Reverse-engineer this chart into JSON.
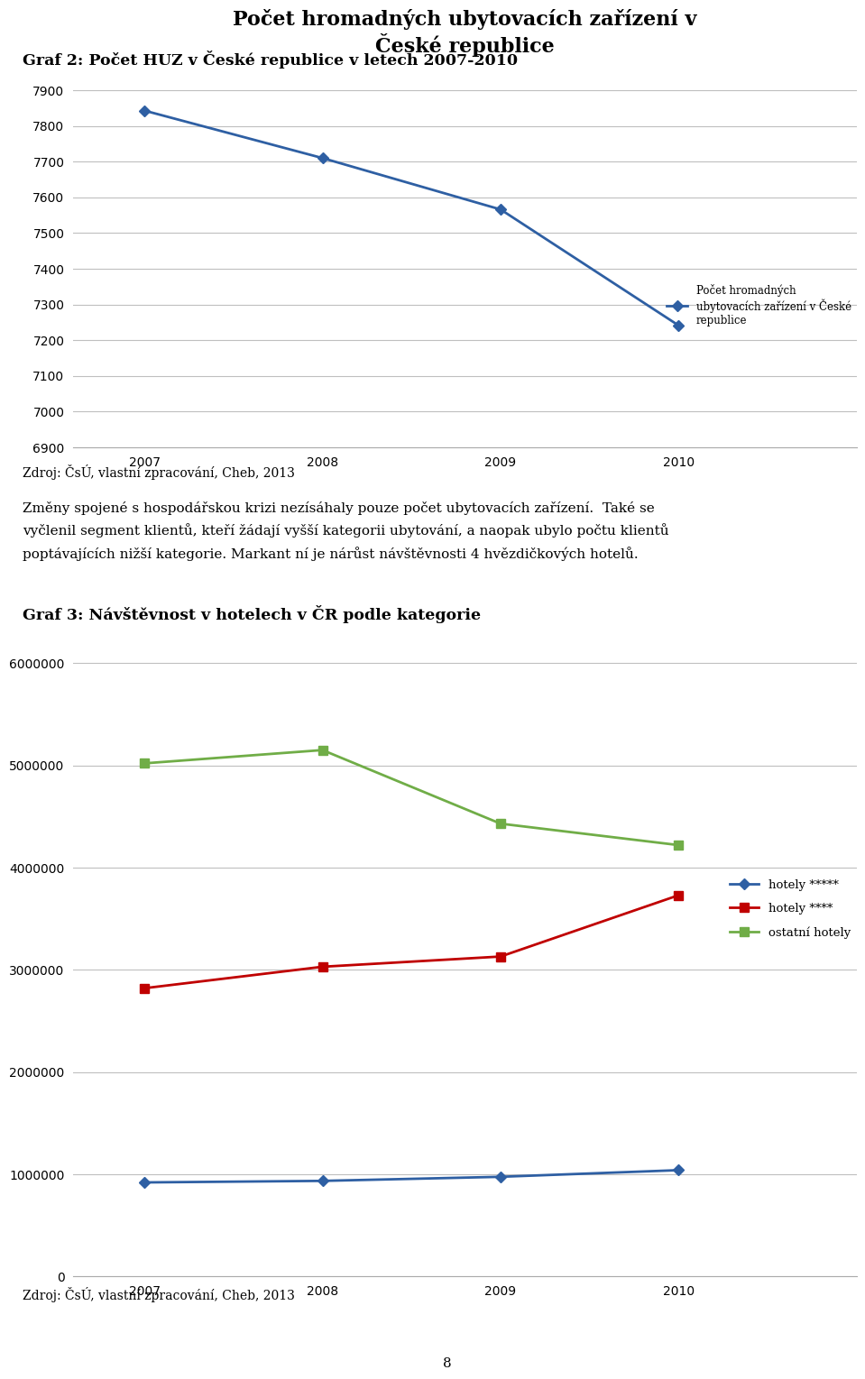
{
  "page_title1": "Graf 2: Počet HUZ v České republice v letech 2007-2010",
  "chart1_title": "Počet hromadných ubytovacích zařízení v\nČeské republice",
  "chart1_years": [
    2007,
    2008,
    2009,
    2010
  ],
  "chart1_values": [
    7843,
    7710,
    7566,
    7241
  ],
  "chart1_ylim": [
    6900,
    7950
  ],
  "chart1_yticks": [
    6900,
    7000,
    7100,
    7200,
    7300,
    7400,
    7500,
    7600,
    7700,
    7800,
    7900
  ],
  "chart1_legend": "Počet hromadných\nubytovacích zařízení v České\nrepublice",
  "chart1_line_color": "#2E5FA3",
  "source_text": "Zdroj: ČsÚ, vlastní zpracování, Cheb, 2013",
  "para_line1": "Změny spojené s hospodářskou krizi nezísáhaly pouze počet ubytovacích zařízení.  Také se",
  "para_line2": "vyčlenil segment klientů, kteří žádají vyšší kategorii ubytování, a naopak ubylo počtu klientů",
  "para_line3": "poptávajících nižší kategorie. Markant ní je nárůst návštěvnosti 4 hvězdičkových hotelů.",
  "page_title2": "Graf 3: Návštěvnost v hotelech v ČR podle kategorie",
  "chart2_years": [
    2007,
    2008,
    2009,
    2010
  ],
  "chart2_5star": [
    920000,
    935000,
    975000,
    1040000
  ],
  "chart2_4star": [
    2820000,
    3030000,
    3130000,
    3730000
  ],
  "chart2_other": [
    5020000,
    5150000,
    4430000,
    4220000
  ],
  "chart2_ylim": [
    0,
    6200000
  ],
  "chart2_yticks": [
    0,
    1000000,
    2000000,
    3000000,
    4000000,
    5000000,
    6000000
  ],
  "chart2_5star_color": "#2E5FA3",
  "chart2_4star_color": "#C00000",
  "chart2_other_color": "#70AD47",
  "chart2_5star_label": "hotely *****",
  "chart2_4star_label": "hotely ****",
  "chart2_other_label": "ostatní hotely",
  "source_text2": "Zdroj: ČsÚ, vlastní zpracování, Cheb, 2013",
  "page_number": "8",
  "bg_color": "#FFFFFF",
  "grid_color": "#BFBFBF"
}
